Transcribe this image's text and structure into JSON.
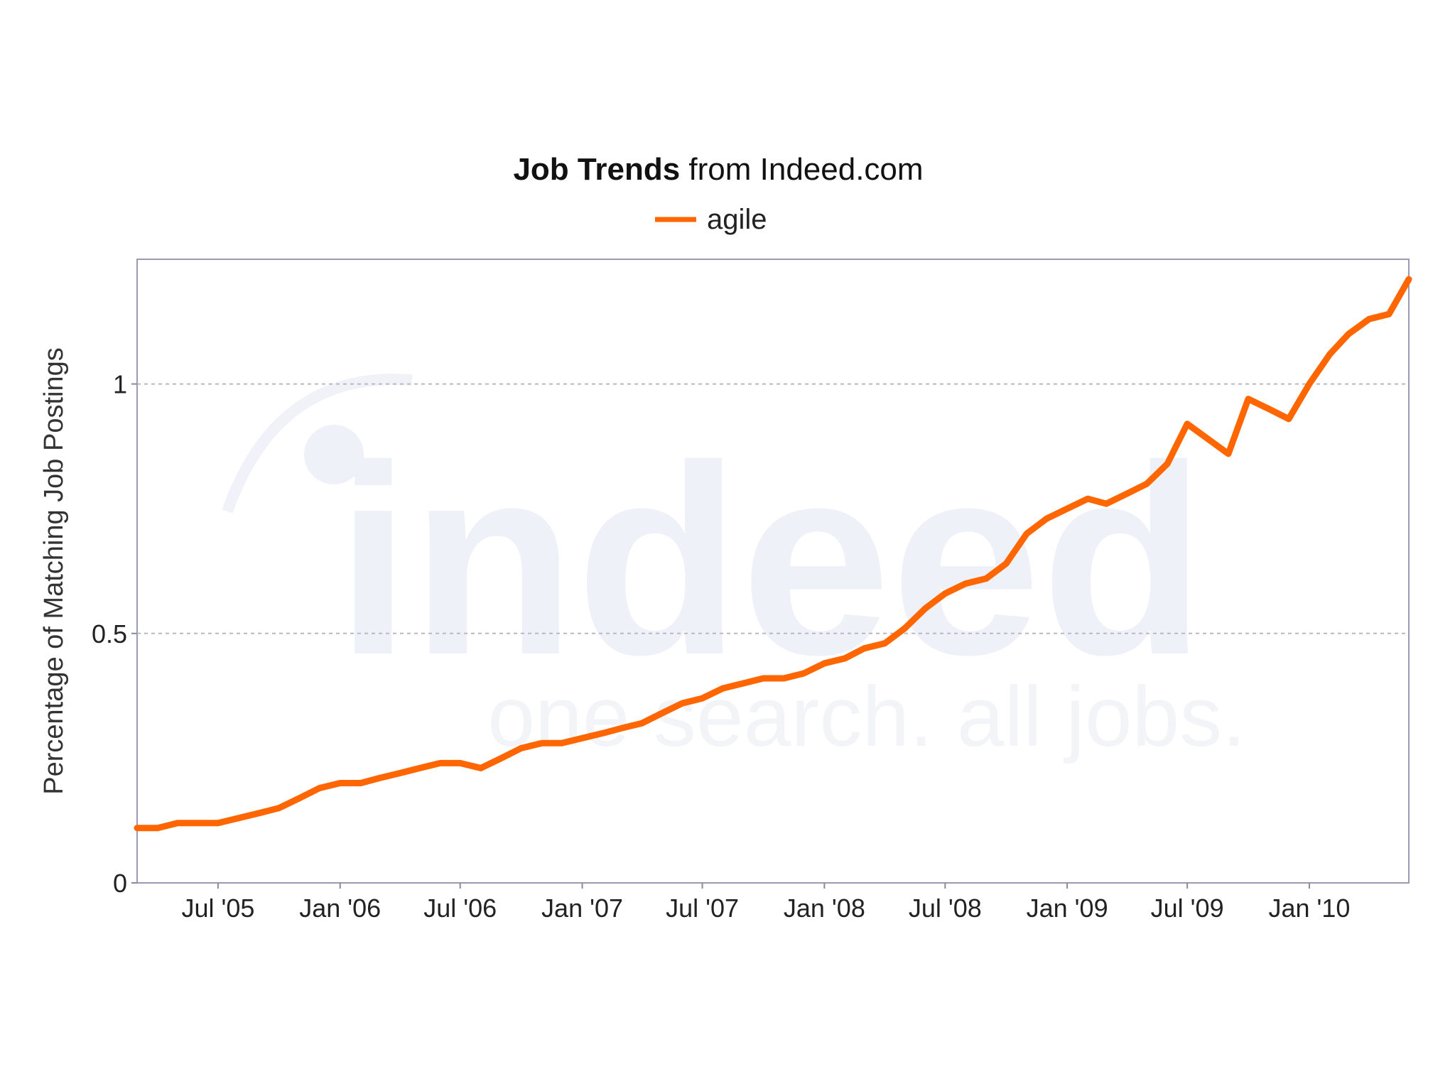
{
  "chart_data": {
    "type": "line",
    "title_bold": "Job Trends",
    "title_rest": " from Indeed.com",
    "ylabel": "Percentage of Matching Job Postings",
    "xlabel": "",
    "ylim": [
      0,
      1.25
    ],
    "yticks": [
      {
        "value": 0,
        "label": "0"
      },
      {
        "value": 0.5,
        "label": "0.5"
      },
      {
        "value": 1,
        "label": "1"
      }
    ],
    "xlim": [
      "2005-03-01",
      "2010-05-31"
    ],
    "xticks": [
      {
        "date": "2005-07-01",
        "label": "Jul '05"
      },
      {
        "date": "2006-01-01",
        "label": "Jan '06"
      },
      {
        "date": "2006-07-01",
        "label": "Jul '06"
      },
      {
        "date": "2007-01-01",
        "label": "Jan '07"
      },
      {
        "date": "2007-07-01",
        "label": "Jul '07"
      },
      {
        "date": "2008-01-01",
        "label": "Jan '08"
      },
      {
        "date": "2008-07-01",
        "label": "Jul '08"
      },
      {
        "date": "2009-01-01",
        "label": "Jan '09"
      },
      {
        "date": "2009-07-01",
        "label": "Jul '09"
      },
      {
        "date": "2010-01-01",
        "label": "Jan '10"
      }
    ],
    "grid": true,
    "legend_position": "top-center",
    "series": [
      {
        "name": "agile",
        "color": "#ff6600",
        "points": [
          [
            "2005-03-01",
            0.11
          ],
          [
            "2005-04-01",
            0.11
          ],
          [
            "2005-05-01",
            0.12
          ],
          [
            "2005-06-01",
            0.12
          ],
          [
            "2005-07-01",
            0.12
          ],
          [
            "2005-08-01",
            0.13
          ],
          [
            "2005-09-01",
            0.14
          ],
          [
            "2005-10-01",
            0.15
          ],
          [
            "2005-11-01",
            0.17
          ],
          [
            "2005-12-01",
            0.19
          ],
          [
            "2006-01-01",
            0.2
          ],
          [
            "2006-02-01",
            0.2
          ],
          [
            "2006-03-01",
            0.21
          ],
          [
            "2006-04-01",
            0.22
          ],
          [
            "2006-05-01",
            0.23
          ],
          [
            "2006-06-01",
            0.24
          ],
          [
            "2006-07-01",
            0.24
          ],
          [
            "2006-08-01",
            0.23
          ],
          [
            "2006-09-01",
            0.25
          ],
          [
            "2006-10-01",
            0.27
          ],
          [
            "2006-11-01",
            0.28
          ],
          [
            "2006-12-01",
            0.28
          ],
          [
            "2007-01-01",
            0.29
          ],
          [
            "2007-02-01",
            0.3
          ],
          [
            "2007-03-01",
            0.31
          ],
          [
            "2007-04-01",
            0.32
          ],
          [
            "2007-05-01",
            0.34
          ],
          [
            "2007-06-01",
            0.36
          ],
          [
            "2007-07-01",
            0.37
          ],
          [
            "2007-08-01",
            0.39
          ],
          [
            "2007-09-01",
            0.4
          ],
          [
            "2007-10-01",
            0.41
          ],
          [
            "2007-11-01",
            0.41
          ],
          [
            "2007-12-01",
            0.42
          ],
          [
            "2008-01-01",
            0.44
          ],
          [
            "2008-02-01",
            0.45
          ],
          [
            "2008-03-01",
            0.47
          ],
          [
            "2008-04-01",
            0.48
          ],
          [
            "2008-05-01",
            0.51
          ],
          [
            "2008-06-01",
            0.55
          ],
          [
            "2008-07-01",
            0.58
          ],
          [
            "2008-08-01",
            0.6
          ],
          [
            "2008-09-01",
            0.61
          ],
          [
            "2008-10-01",
            0.64
          ],
          [
            "2008-11-01",
            0.7
          ],
          [
            "2008-12-01",
            0.73
          ],
          [
            "2009-01-01",
            0.75
          ],
          [
            "2009-02-01",
            0.77
          ],
          [
            "2009-03-01",
            0.76
          ],
          [
            "2009-04-01",
            0.78
          ],
          [
            "2009-05-01",
            0.8
          ],
          [
            "2009-06-01",
            0.84
          ],
          [
            "2009-07-01",
            0.92
          ],
          [
            "2009-08-01",
            0.89
          ],
          [
            "2009-09-01",
            0.86
          ],
          [
            "2009-10-01",
            0.97
          ],
          [
            "2009-11-01",
            0.95
          ],
          [
            "2009-12-01",
            0.93
          ],
          [
            "2010-01-01",
            1.0
          ],
          [
            "2010-02-01",
            1.06
          ],
          [
            "2010-03-01",
            1.1
          ],
          [
            "2010-04-01",
            1.13
          ],
          [
            "2010-05-01",
            1.14
          ],
          [
            "2010-05-31",
            1.21
          ]
        ]
      }
    ]
  }
}
